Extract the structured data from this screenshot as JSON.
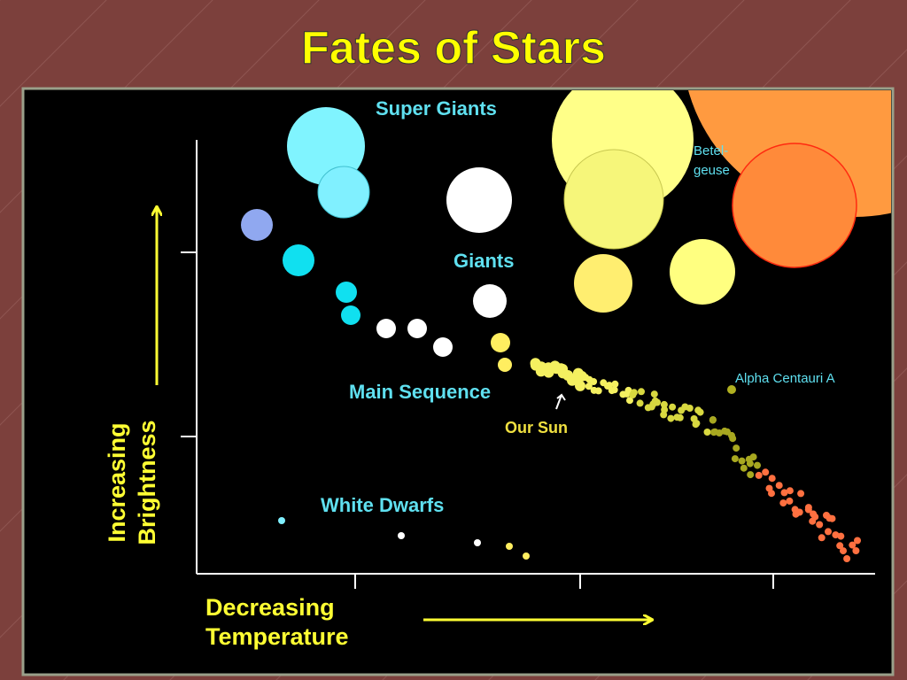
{
  "title": "Fates of Stars",
  "diagram": {
    "labels": {
      "super_giants": "Super Giants",
      "giants": "Giants",
      "main_sequence": "Main Sequence",
      "our_sun": "Our Sun",
      "white_dwarfs": "White Dwarfs",
      "betelgeuse": [
        "Betel-",
        "geuse"
      ],
      "alpha_centauri": "Alpha Centauri A"
    },
    "y_axis_label": [
      "Increasing",
      "Brightness"
    ],
    "x_axis_label": [
      "Decreasing",
      "Temperature"
    ]
  }
}
